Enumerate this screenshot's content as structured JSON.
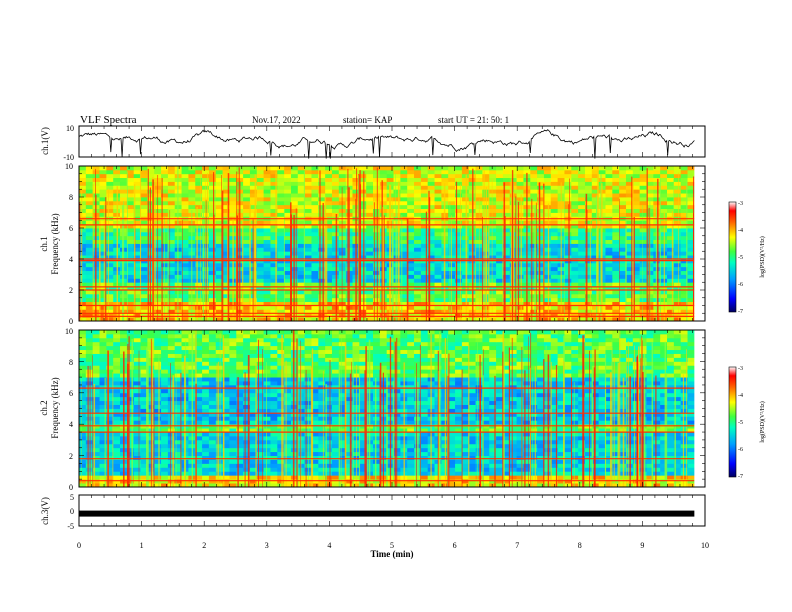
{
  "header": {
    "title": "VLF Spectra",
    "date": "Nov.17, 2022",
    "station": "station= KAP",
    "start": "start  UT  =   21: 50: 1"
  },
  "chart_data": [
    {
      "type": "line",
      "ylabel": "ch.1(V)",
      "ylim": [
        -10,
        10
      ],
      "y_ticks": [
        "10",
        "-10"
      ]
    },
    {
      "type": "heatmap",
      "ylabel_top": "ch.1",
      "ylabel": "Frequency (kHz)",
      "ylim": [
        0,
        10
      ],
      "y_ticks": [
        "0",
        "2",
        "4",
        "6",
        "8",
        "10"
      ],
      "colorbar": {
        "label": "log(PSD)(V²/Hz)",
        "range": [
          -7,
          -3
        ],
        "ticks": [
          "-3",
          "-4",
          "-5",
          "-6",
          "-7"
        ]
      },
      "persistent_lines_khz": [
        0.3,
        0.5,
        1.0,
        2.0,
        2.2,
        3.9,
        4.0,
        6.2,
        6.6
      ]
    },
    {
      "type": "heatmap",
      "ylabel_top": "ch.2",
      "ylabel": "Frequency (kHz)",
      "ylim": [
        0,
        10
      ],
      "y_ticks": [
        "0",
        "2",
        "4",
        "6",
        "8",
        "10"
      ],
      "colorbar": {
        "label": "log(PSD)(V²/Hz)",
        "range": [
          -7,
          -3
        ],
        "ticks": [
          "-3",
          "-4",
          "-5",
          "-6",
          "-7"
        ]
      },
      "persistent_lines_khz": [
        0.4,
        1.8,
        3.5,
        3.9,
        4.7,
        6.3
      ]
    },
    {
      "type": "line",
      "ylabel": "ch.3(V)",
      "ylim": [
        -5,
        5
      ],
      "y_ticks": [
        "5",
        "0",
        "-5"
      ],
      "constant_value": -1
    }
  ],
  "x_axis": {
    "label": "Time (min)",
    "range": [
      0,
      10
    ],
    "data_end": 9.83,
    "ticks": [
      "0",
      "1",
      "2",
      "3",
      "4",
      "5",
      "6",
      "7",
      "8",
      "9",
      "10"
    ]
  },
  "colors": {
    "trace": "#000000",
    "cmap": [
      "#000080",
      "#0000ff",
      "#0080ff",
      "#00e0ff",
      "#00ff80",
      "#80ff00",
      "#ffff00",
      "#ff8000",
      "#ff0000",
      "#ffffff"
    ]
  }
}
